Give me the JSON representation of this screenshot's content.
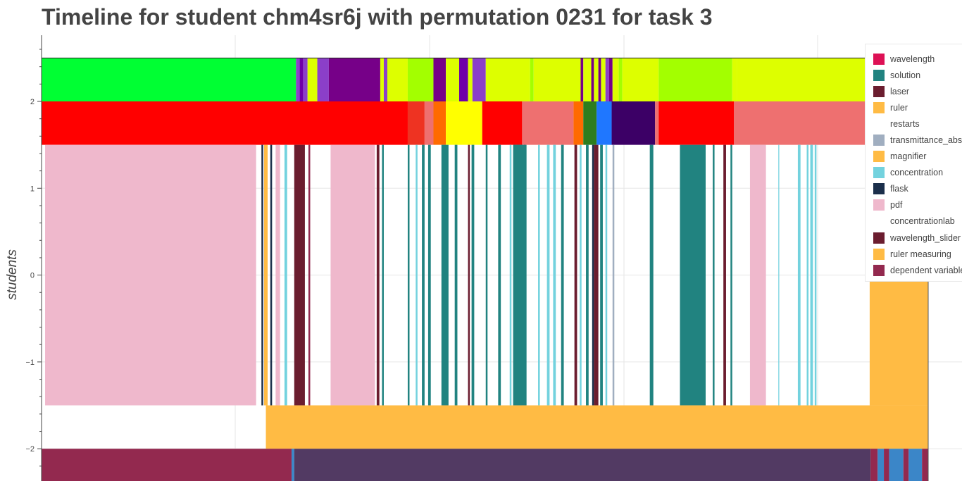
{
  "chart_data": {
    "type": "timeline",
    "title": "Timeline for student chm4sr6j with permutation 0231 for task 3",
    "ylabel": "students",
    "ylim": [
      -2.4,
      2.75
    ],
    "xlim": [
      0,
      100
    ],
    "yticks": [
      {
        "value": 2,
        "label": "2"
      },
      {
        "value": 1,
        "label": "1"
      },
      {
        "value": 0,
        "label": "0"
      },
      {
        "value": -1,
        "label": "−1"
      },
      {
        "value": -2,
        "label": "−2"
      }
    ],
    "grid": true,
    "legend_position": "top-right",
    "legend": [
      {
        "name": "wavelength",
        "color": "#dd1155"
      },
      {
        "name": "solution",
        "color": "#218380"
      },
      {
        "name": "laser",
        "color": "#6b1d2f"
      },
      {
        "name": "ruler",
        "color": "#ffbb44"
      },
      {
        "name": "restarts",
        "color": "#ffffff"
      },
      {
        "name": "transmittance_abs",
        "color": "#a0aec0"
      },
      {
        "name": "magnifier",
        "color": "#ffbb44"
      },
      {
        "name": "concentration",
        "color": "#73d2de"
      },
      {
        "name": "flask",
        "color": "#1b2f4b"
      },
      {
        "name": "pdf",
        "color": "#efb8cc"
      },
      {
        "name": "concentrationlab",
        "color": "#ffffff"
      },
      {
        "name": "wavelength_slider",
        "color": "#6b1d2f"
      },
      {
        "name": "ruler measuring",
        "color": "#ffbb44"
      },
      {
        "name": "dependent variable",
        "color": "#93294f"
      }
    ],
    "rows": [
      {
        "row": "top",
        "y_range": [
          2,
          2.5
        ],
        "segments": [
          {
            "x0": 0,
            "x1": 28.7,
            "color": "#00ff33"
          },
          {
            "x0": 28.7,
            "x1": 29.1,
            "color": "#8b3fc9"
          },
          {
            "x0": 29.1,
            "x1": 29.5,
            "color": "#6f00a8"
          },
          {
            "x0": 29.5,
            "x1": 30.0,
            "color": "#8b3fc9"
          },
          {
            "x0": 30.0,
            "x1": 31.1,
            "color": "#ddff00"
          },
          {
            "x0": 31.1,
            "x1": 32.4,
            "color": "#8b3fc9"
          },
          {
            "x0": 32.4,
            "x1": 38.2,
            "color": "#760088"
          },
          {
            "x0": 38.2,
            "x1": 38.6,
            "color": "#ddff00"
          },
          {
            "x0": 38.6,
            "x1": 39.0,
            "color": "#8b3fc9"
          },
          {
            "x0": 39.0,
            "x1": 41.3,
            "color": "#ddff00"
          },
          {
            "x0": 41.3,
            "x1": 44.2,
            "color": "#a3ff00"
          },
          {
            "x0": 44.2,
            "x1": 45.6,
            "color": "#760088"
          },
          {
            "x0": 45.6,
            "x1": 47.1,
            "color": "#ddff00"
          },
          {
            "x0": 47.1,
            "x1": 48.1,
            "color": "#6f00a8"
          },
          {
            "x0": 48.1,
            "x1": 48.6,
            "color": "#ddff00"
          },
          {
            "x0": 48.6,
            "x1": 50.1,
            "color": "#8b3fc9"
          },
          {
            "x0": 50.1,
            "x1": 55.1,
            "color": "#ddff00"
          },
          {
            "x0": 55.1,
            "x1": 55.5,
            "color": "#a3ff00"
          },
          {
            "x0": 55.5,
            "x1": 60.8,
            "color": "#ddff00"
          },
          {
            "x0": 60.8,
            "x1": 61.1,
            "color": "#760088"
          },
          {
            "x0": 61.1,
            "x1": 62.0,
            "color": "#ddff00"
          },
          {
            "x0": 62.0,
            "x1": 62.3,
            "color": "#760088"
          },
          {
            "x0": 62.3,
            "x1": 62.8,
            "color": "#ddff00"
          },
          {
            "x0": 62.8,
            "x1": 63.1,
            "color": "#760088"
          },
          {
            "x0": 63.1,
            "x1": 63.6,
            "color": "#ddff00"
          },
          {
            "x0": 63.6,
            "x1": 64.0,
            "color": "#8b3fc9"
          },
          {
            "x0": 64.0,
            "x1": 64.4,
            "color": "#760088"
          },
          {
            "x0": 64.4,
            "x1": 65.1,
            "color": "#ddff00"
          },
          {
            "x0": 65.1,
            "x1": 65.5,
            "color": "#a3ff00"
          },
          {
            "x0": 65.5,
            "x1": 69.6,
            "color": "#ddff00"
          },
          {
            "x0": 69.6,
            "x1": 77.9,
            "color": "#a3ff00"
          },
          {
            "x0": 77.9,
            "x1": 78.4,
            "color": "#ddff00"
          },
          {
            "x0": 78.4,
            "x1": 100,
            "color": "#ddff00"
          }
        ]
      },
      {
        "row": "second",
        "y_range": [
          1.5,
          2
        ],
        "segments": [
          {
            "x0": 0,
            "x1": 41.3,
            "color": "#ff0000"
          },
          {
            "x0": 41.3,
            "x1": 43.2,
            "color": "#ee3322"
          },
          {
            "x0": 43.2,
            "x1": 44.2,
            "color": "#ee7070"
          },
          {
            "x0": 44.2,
            "x1": 45.6,
            "color": "#ff6a00"
          },
          {
            "x0": 45.6,
            "x1": 49.7,
            "color": "#ffff00"
          },
          {
            "x0": 49.7,
            "x1": 54.2,
            "color": "#ff0000"
          },
          {
            "x0": 54.2,
            "x1": 60.0,
            "color": "#ee7070"
          },
          {
            "x0": 60.0,
            "x1": 61.1,
            "color": "#ff6a00"
          },
          {
            "x0": 61.1,
            "x1": 62.6,
            "color": "#2e7d1e"
          },
          {
            "x0": 62.6,
            "x1": 64.3,
            "color": "#1f77ff"
          },
          {
            "x0": 64.3,
            "x1": 69.2,
            "color": "#3c0066"
          },
          {
            "x0": 69.2,
            "x1": 69.6,
            "color": "#ee7070"
          },
          {
            "x0": 69.6,
            "x1": 78.1,
            "color": "#ff0000"
          },
          {
            "x0": 78.1,
            "x1": 100,
            "color": "#ee7070"
          }
        ]
      },
      {
        "row": "middle",
        "y_range": [
          -1.5,
          1.5
        ],
        "segments": [
          {
            "x0": 0.4,
            "x1": 24.2,
            "color": "#efb8cc"
          },
          {
            "x0": 24.8,
            "x1": 25.0,
            "color": "#1b2f4b"
          },
          {
            "x0": 25.1,
            "x1": 25.5,
            "color": "#ffbb44"
          },
          {
            "x0": 25.8,
            "x1": 26.0,
            "color": "#1b2f4b"
          },
          {
            "x0": 26.4,
            "x1": 26.9,
            "color": "#efb8cc"
          },
          {
            "x0": 27.4,
            "x1": 27.7,
            "color": "#73d2de"
          },
          {
            "x0": 28.5,
            "x1": 29.7,
            "color": "#6b1d2f"
          },
          {
            "x0": 30.1,
            "x1": 30.3,
            "color": "#93294f"
          },
          {
            "x0": 32.6,
            "x1": 37.6,
            "color": "#efb8cc"
          },
          {
            "x0": 37.8,
            "x1": 38.1,
            "color": "#6b1d2f"
          },
          {
            "x0": 38.4,
            "x1": 38.6,
            "color": "#218380"
          },
          {
            "x0": 41.3,
            "x1": 41.5,
            "color": "#218380"
          },
          {
            "x0": 42.2,
            "x1": 42.4,
            "color": "#73d2de"
          },
          {
            "x0": 42.9,
            "x1": 43.2,
            "color": "#218380"
          },
          {
            "x0": 43.6,
            "x1": 43.9,
            "color": "#218380"
          },
          {
            "x0": 45.1,
            "x1": 45.9,
            "color": "#218380"
          },
          {
            "x0": 46.6,
            "x1": 46.9,
            "color": "#218380"
          },
          {
            "x0": 48.1,
            "x1": 48.3,
            "color": "#6b1d2f"
          },
          {
            "x0": 48.5,
            "x1": 48.8,
            "color": "#218380"
          },
          {
            "x0": 50.1,
            "x1": 50.3,
            "color": "#218380"
          },
          {
            "x0": 51.5,
            "x1": 51.8,
            "color": "#218380"
          },
          {
            "x0": 52.8,
            "x1": 53.0,
            "color": "#73d2de"
          },
          {
            "x0": 53.2,
            "x1": 53.4,
            "color": "#218380"
          },
          {
            "x0": 53.6,
            "x1": 54.0,
            "color": "#218380"
          },
          {
            "x0": 53.9,
            "x1": 54.1,
            "color": "#73d2de"
          },
          {
            "x0": 54.1,
            "x1": 54.3,
            "color": "#218380"
          },
          {
            "x0": 53.2,
            "x1": 54.2,
            "color": "#218380"
          },
          {
            "x0": 54.4,
            "x1": 54.6,
            "color": "#6b1d2f"
          },
          {
            "x0": 54.5,
            "x1": 54.7,
            "color": "#218380"
          },
          {
            "x0": 53.2,
            "x1": 54.6,
            "color": "#218380"
          },
          {
            "x0": 56.0,
            "x1": 56.2,
            "color": "#73d2de"
          },
          {
            "x0": 57.0,
            "x1": 57.3,
            "color": "#73d2de"
          },
          {
            "x0": 57.7,
            "x1": 58.0,
            "color": "#73d2de"
          },
          {
            "x0": 58.6,
            "x1": 58.9,
            "color": "#218380"
          },
          {
            "x0": 60.1,
            "x1": 60.4,
            "color": "#6b1d2f"
          },
          {
            "x0": 60.7,
            "x1": 60.9,
            "color": "#73d2de"
          },
          {
            "x0": 61.4,
            "x1": 61.7,
            "color": "#218380"
          },
          {
            "x0": 62.1,
            "x1": 62.3,
            "color": "#1b2f4b"
          },
          {
            "x0": 62.3,
            "x1": 62.8,
            "color": "#6b1d2f"
          },
          {
            "x0": 63.0,
            "x1": 63.3,
            "color": "#218380"
          },
          {
            "x0": 63.6,
            "x1": 63.8,
            "color": "#73d2de"
          },
          {
            "x0": 64.4,
            "x1": 64.6,
            "color": "#a0aec0"
          },
          {
            "x0": 68.6,
            "x1": 69.0,
            "color": "#218380"
          },
          {
            "x0": 72.0,
            "x1": 74.9,
            "color": "#218380"
          },
          {
            "x0": 75.7,
            "x1": 75.9,
            "color": "#218380"
          },
          {
            "x0": 76.9,
            "x1": 77.2,
            "color": "#6b1d2f"
          },
          {
            "x0": 77.7,
            "x1": 77.9,
            "color": "#218380"
          },
          {
            "x0": 79.9,
            "x1": 81.7,
            "color": "#efb8cc"
          },
          {
            "x0": 83.1,
            "x1": 83.2,
            "color": "#73d2de"
          },
          {
            "x0": 85.3,
            "x1": 85.6,
            "color": "#73d2de"
          },
          {
            "x0": 86.3,
            "x1": 86.5,
            "color": "#73d2de"
          },
          {
            "x0": 86.7,
            "x1": 87.0,
            "color": "#73d2de"
          },
          {
            "x0": 87.2,
            "x1": 87.4,
            "color": "#73d2de"
          },
          {
            "x0": 93.4,
            "x1": 100,
            "color": "#ffbb44"
          }
        ]
      },
      {
        "row": "fourth",
        "y_range": [
          -2,
          -1.5
        ],
        "segments": [
          {
            "x0": 25.3,
            "x1": 100,
            "color": "#ffbb44"
          }
        ]
      },
      {
        "row": "bottom",
        "y_range": [
          -2.4,
          -2
        ],
        "segments": [
          {
            "x0": 0,
            "x1": 28.2,
            "color": "#93294f"
          },
          {
            "x0": 28.2,
            "x1": 28.5,
            "color": "#3b86c8"
          },
          {
            "x0": 28.5,
            "x1": 93.5,
            "color": "#523a63"
          },
          {
            "x0": 93.5,
            "x1": 94.3,
            "color": "#93294f"
          },
          {
            "x0": 94.3,
            "x1": 95.0,
            "color": "#3b86c8"
          },
          {
            "x0": 95.0,
            "x1": 95.6,
            "color": "#93294f"
          },
          {
            "x0": 95.6,
            "x1": 97.2,
            "color": "#3b86c8"
          },
          {
            "x0": 97.2,
            "x1": 97.8,
            "color": "#93294f"
          },
          {
            "x0": 97.8,
            "x1": 99.3,
            "color": "#3b86c8"
          },
          {
            "x0": 99.3,
            "x1": 100,
            "color": "#93294f"
          }
        ]
      }
    ]
  }
}
